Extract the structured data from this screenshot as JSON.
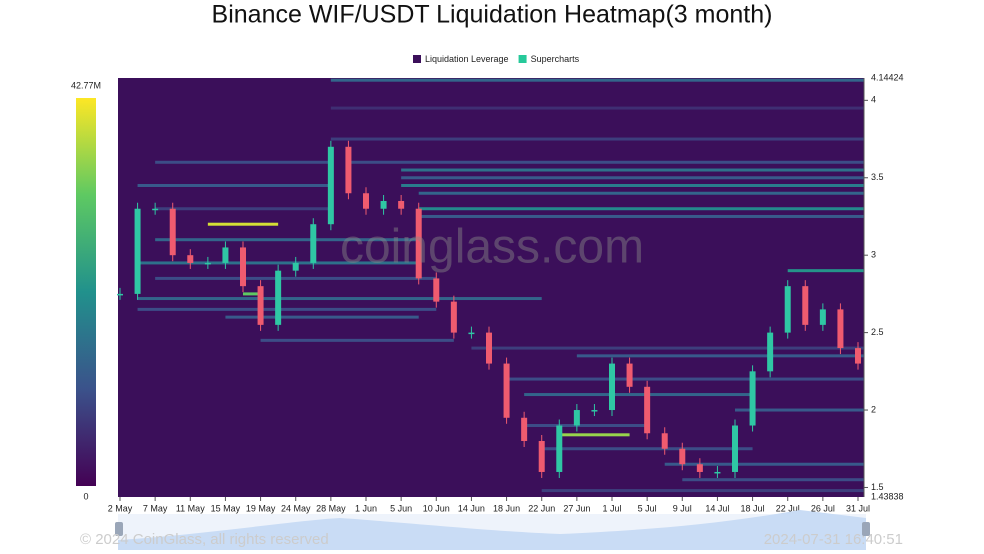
{
  "chart_data": {
    "type": "heatmap",
    "title": "Binance WIF/USDT Liquidation Heatmap(3 month)",
    "watermark": "coinglass.com",
    "footer": "© 2024 CoinGlass, all rights reserved",
    "timestamp": "2024-07-31 16:40:51",
    "categories": [
      "2 May",
      null,
      "7 May",
      null,
      "11 May",
      null,
      "15 May",
      null,
      "19 May",
      null,
      "24 May",
      null,
      "28 May",
      null,
      "1 Jun",
      null,
      "5 Jun",
      null,
      "10 Jun",
      null,
      "14 Jun",
      null,
      "18 Jun",
      null,
      "22 Jun",
      null,
      "27 Jun",
      null,
      "1 Jul",
      null,
      "5 Jul",
      null,
      "9 Jul",
      null,
      "14 Jul",
      null,
      "18 Jul",
      null,
      "22 Jul",
      null,
      "26 Jul",
      null,
      "31 Jul"
    ],
    "ylim": [
      1.43838,
      4.14424
    ],
    "yticks": [
      1.5,
      2,
      2.5,
      3,
      3.5,
      4
    ],
    "zlim": [
      0,
      42.77
    ],
    "zticks": [
      0,
      {
        "value": 42.77,
        "label": "42.77M"
      }
    ],
    "series": [
      {
        "name": "Liquidation Leverage",
        "color": "#3b0f5a",
        "bands": [
          {
            "price": 4.13,
            "start": 12,
            "end": 42,
            "value": 14
          },
          {
            "price": 3.95,
            "start": 12,
            "end": 42,
            "value": 6
          },
          {
            "price": 3.75,
            "start": 12,
            "end": 42,
            "value": 8
          },
          {
            "price": 3.6,
            "start": 13,
            "end": 42,
            "value": 10
          },
          {
            "price": 3.55,
            "start": 16,
            "end": 42,
            "value": 16
          },
          {
            "price": 3.5,
            "start": 16,
            "end": 42,
            "value": 12
          },
          {
            "price": 3.45,
            "start": 16,
            "end": 42,
            "value": 18
          },
          {
            "price": 3.4,
            "start": 17,
            "end": 42,
            "value": 14
          },
          {
            "price": 3.3,
            "start": 17,
            "end": 42,
            "value": 20
          },
          {
            "price": 3.25,
            "start": 17,
            "end": 42,
            "value": 12
          },
          {
            "price": 3.6,
            "start": 2,
            "end": 12,
            "value": 10
          },
          {
            "price": 3.45,
            "start": 1,
            "end": 12,
            "value": 12
          },
          {
            "price": 3.3,
            "start": 2,
            "end": 12,
            "value": 8
          },
          {
            "price": 3.2,
            "start": 5,
            "end": 9,
            "value": 40
          },
          {
            "price": 3.1,
            "start": 2,
            "end": 17,
            "value": 14
          },
          {
            "price": 2.95,
            "start": 1,
            "end": 17,
            "value": 16
          },
          {
            "price": 2.9,
            "start": 38,
            "end": 42,
            "value": 22
          },
          {
            "price": 2.85,
            "start": 2,
            "end": 18,
            "value": 10
          },
          {
            "price": 2.75,
            "start": 7,
            "end": 8,
            "value": 32
          },
          {
            "price": 2.72,
            "start": 1,
            "end": 24,
            "value": 14
          },
          {
            "price": 2.65,
            "start": 1,
            "end": 18,
            "value": 10
          },
          {
            "price": 2.6,
            "start": 6,
            "end": 17,
            "value": 12
          },
          {
            "price": 2.45,
            "start": 8,
            "end": 19,
            "value": 10
          },
          {
            "price": 2.4,
            "start": 20,
            "end": 42,
            "value": 8
          },
          {
            "price": 2.35,
            "start": 26,
            "end": 42,
            "value": 12
          },
          {
            "price": 2.2,
            "start": 22,
            "end": 42,
            "value": 10
          },
          {
            "price": 2.1,
            "start": 23,
            "end": 36,
            "value": 14
          },
          {
            "price": 2.0,
            "start": 35,
            "end": 42,
            "value": 12
          },
          {
            "price": 1.9,
            "start": 23,
            "end": 30,
            "value": 10
          },
          {
            "price": 1.84,
            "start": 25,
            "end": 29,
            "value": 36
          },
          {
            "price": 1.75,
            "start": 24,
            "end": 36,
            "value": 10
          },
          {
            "price": 1.65,
            "start": 31,
            "end": 42,
            "value": 12
          },
          {
            "price": 1.55,
            "start": 32,
            "end": 42,
            "value": 10
          },
          {
            "price": 1.48,
            "start": 24,
            "end": 42,
            "value": 8
          }
        ]
      },
      {
        "name": "Supercharts",
        "color": "#26c99a",
        "up_color": "#2fc7a4",
        "down_color": "#ef5b6f",
        "values": [
          2.75,
          3.3,
          3.3,
          3.0,
          2.95,
          2.95,
          3.05,
          2.8,
          2.55,
          2.9,
          2.95,
          3.2,
          3.7,
          3.4,
          3.3,
          3.35,
          3.3,
          2.85,
          2.7,
          2.5,
          2.5,
          2.3,
          1.95,
          1.8,
          1.6,
          1.9,
          2.0,
          2.0,
          2.3,
          2.15,
          1.85,
          1.75,
          1.65,
          1.6,
          1.6,
          1.9,
          2.25,
          2.5,
          2.8,
          2.55,
          2.65,
          2.4,
          2.3
        ]
      }
    ]
  }
}
